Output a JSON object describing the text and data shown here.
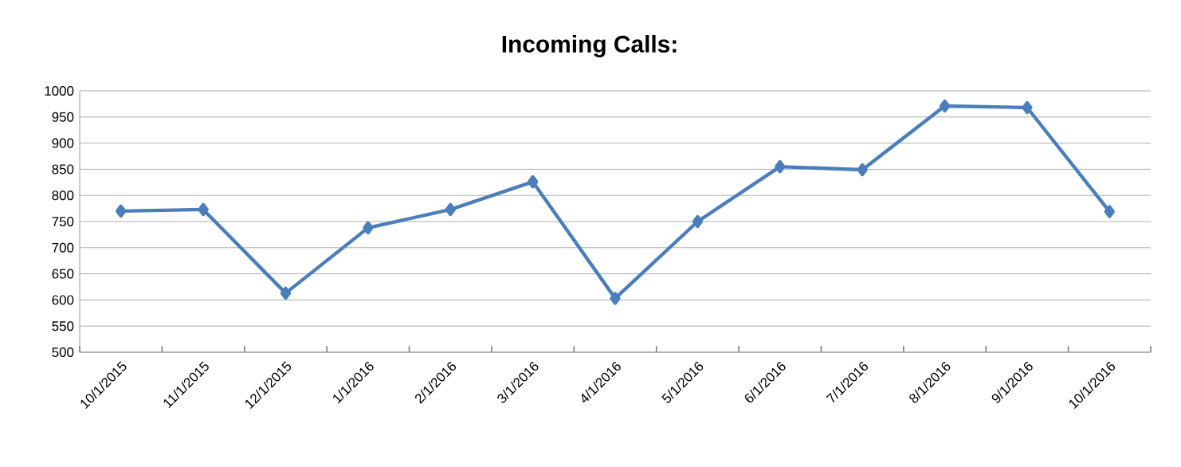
{
  "chart_data": {
    "type": "line",
    "title": "Incoming Calls:",
    "categories": [
      "10/1/2015",
      "11/1/2015",
      "12/1/2015",
      "1/1/2016",
      "2/1/2016",
      "3/1/2016",
      "4/1/2016",
      "5/1/2016",
      "6/1/2016",
      "7/1/2016",
      "8/1/2016",
      "9/1/2016",
      "10/1/2016"
    ],
    "series": [
      {
        "color": "#4a7ebb",
        "values": [
          770,
          773,
          613,
          738,
          773,
          826,
          603,
          750,
          855,
          849,
          971,
          968,
          769
        ]
      }
    ],
    "ylim": [
      500,
      1000
    ],
    "yticks": [
      500,
      550,
      600,
      650,
      700,
      750,
      800,
      850,
      900,
      950,
      1000
    ],
    "grid": "y",
    "marker": "diamond",
    "line_style": "solid"
  }
}
